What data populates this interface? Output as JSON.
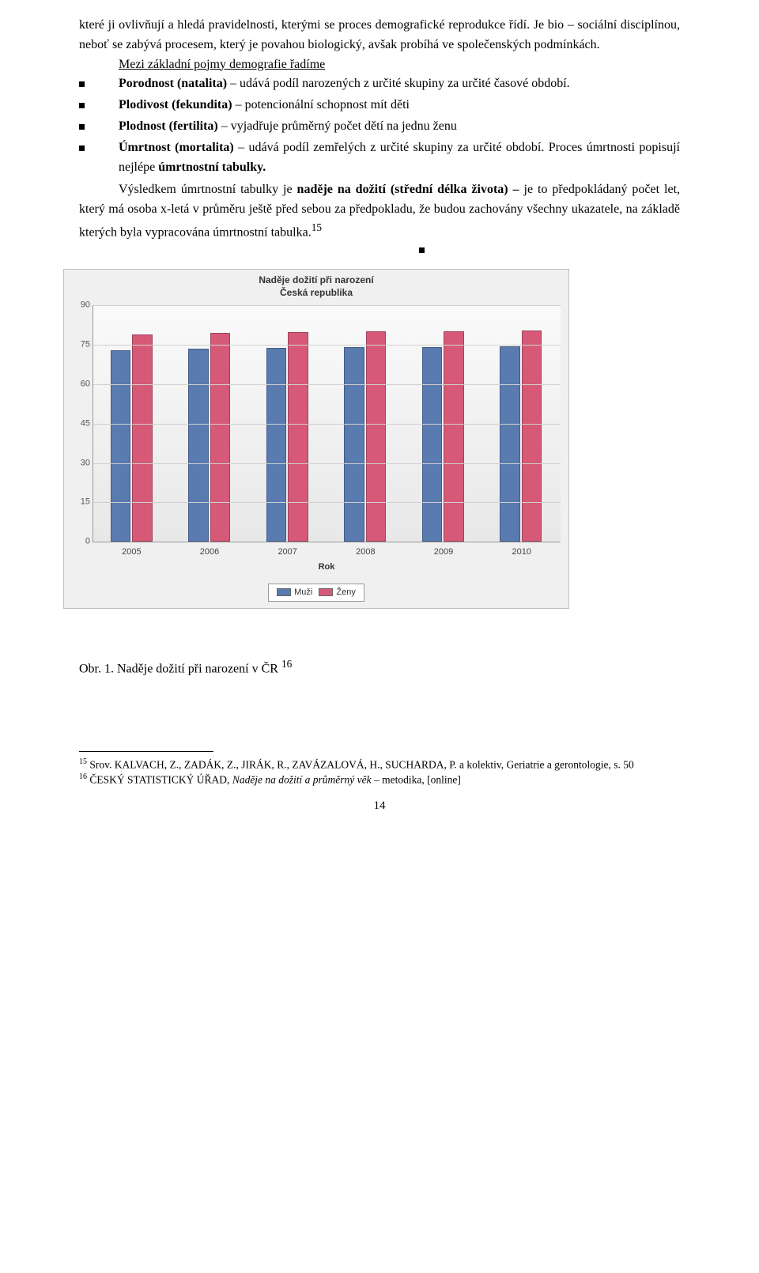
{
  "para1": "které ji ovlivňují a hledá pravidelnosti, kterými se proces demografické reprodukce řídí. Je bio – sociální disciplínou, neboť se zabývá procesem, který je povahou biologický, avšak probíhá ve společenských podmínkách.",
  "subhead": "Mezi základní pojmy demografie řadíme",
  "bullets": [
    {
      "lead": "Porodnost (natalita)",
      "rest": " – udává podíl narozených z určité skupiny za určité časové období."
    },
    {
      "lead": "Plodivost (fekundita)",
      "rest": " – potencionální schopnost mít děti"
    },
    {
      "lead": "Plodnost (fertilita)",
      "rest": " – vyjadřuje průměrný počet dětí na jednu ženu"
    },
    {
      "lead": "Úmrtnost (mortalita)",
      "rest": " – udává podíl zemřelých z určité skupiny za určité období. Proces úmrtnosti popisují nejlépe ",
      "bold": "úmrtnostní tabulky."
    }
  ],
  "para2_a": "Výsledkem úmrtnostní tabulky je ",
  "para2_bold": "naděje na dožití (střední délka života) –",
  "para2_b": " je to předpokládaný počet let, který má osoba x-letá v průměru ještě před sebou za předpokladu, že budou zachovány všechny ukazatele, na základě kterých byla vypracována úmrtnostní tabulka.",
  "para2_sup": "15",
  "chart": {
    "title_line1": "Naděje dožití při narození",
    "title_line2": "Česká republika",
    "categories": [
      "2005",
      "2006",
      "2007",
      "2008",
      "2009",
      "2010"
    ],
    "series": [
      {
        "name": "Muži",
        "color": "#5a7bb0",
        "values": [
          72.9,
          73.4,
          73.7,
          74.0,
          74.2,
          74.4
        ]
      },
      {
        "name": "Ženy",
        "color": "#d65a78",
        "values": [
          79.1,
          79.7,
          79.9,
          80.1,
          80.1,
          80.6
        ]
      }
    ],
    "ymax": 90,
    "ytick_step": 15,
    "xaxis_title": "Rok",
    "legend_labels": [
      "Muži",
      "Ženy"
    ],
    "plot_bg_top": "#fafafa",
    "plot_bg_bottom": "#e8e8e8",
    "grid_color": "#cfcfcf"
  },
  "caption_a": "Obr. 1. Naděje dožití při narození v ČR ",
  "caption_sup": "16",
  "footnotes": [
    {
      "n": "15",
      "text_a": " Srov. KALVACH, Z., ZADÁK, Z., JIRÁK, R., ZAVÁZALOVÁ, H., SUCHARDA, P. a kolektiv, Geriatrie a gerontologie, s. 50"
    },
    {
      "n": "16",
      "text_a": "   ČESKÝ STATISTICKÝ ÚŘAD,  ",
      "italic": "Naděje na dožití a průměrný věk",
      "text_b": " – metodika, [online]"
    }
  ],
  "pagenum": "14"
}
